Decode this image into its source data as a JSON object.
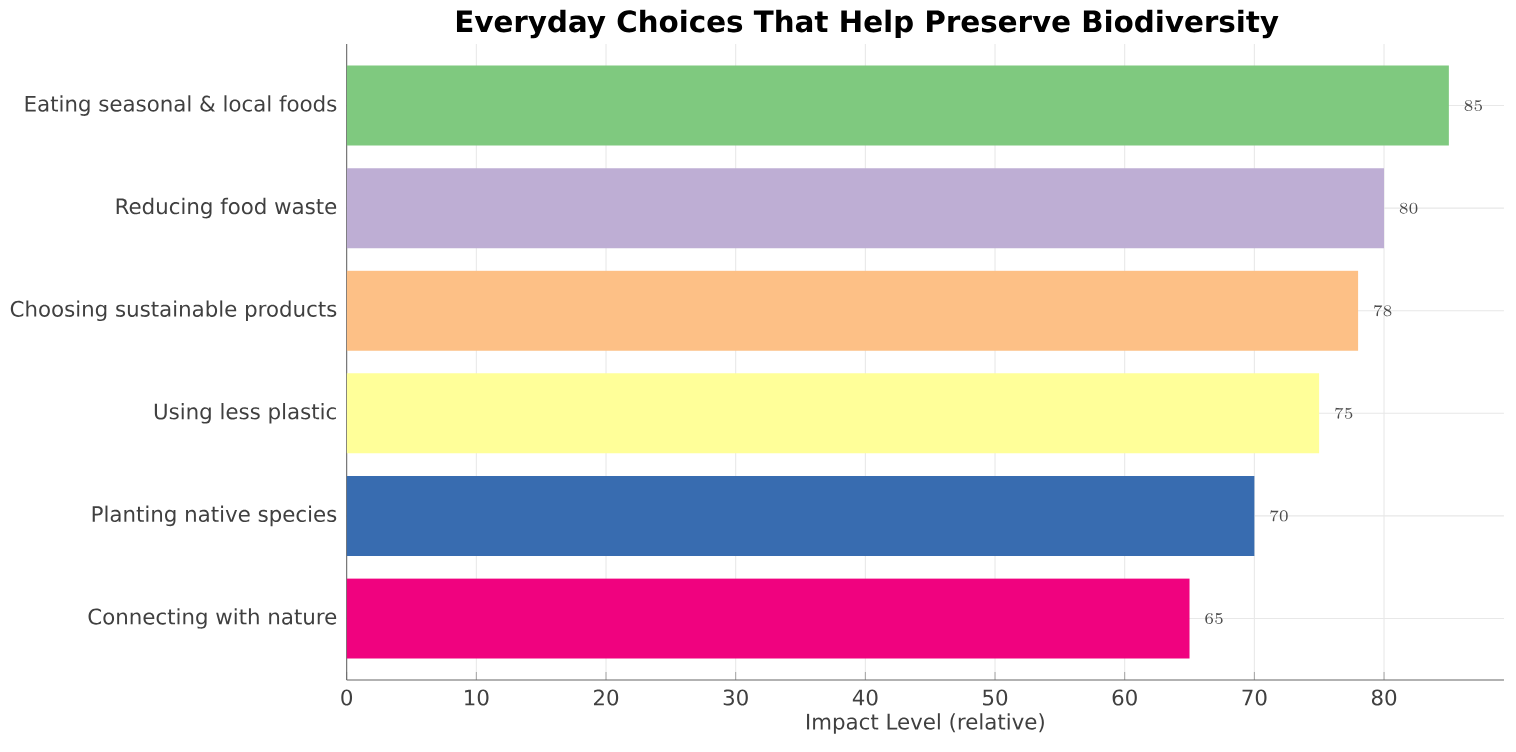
{
  "chart_data": {
    "type": "bar",
    "orientation": "horizontal",
    "title": "Everyday Choices That Help Preserve Biodiversity",
    "xlabel": "Impact Level (relative)",
    "categories": [
      "Eating seasonal & local foods",
      "Reducing food waste",
      "Choosing sustainable products",
      "Using less plastic",
      "Planting native species",
      "Connecting with nature"
    ],
    "values": [
      85,
      80,
      78,
      75,
      70,
      65
    ],
    "colors": [
      "#7fc97f",
      "#beaed4",
      "#fdc086",
      "#ffff99",
      "#386cb0",
      "#f0027f"
    ],
    "xlim": [
      0,
      89.25
    ],
    "xticks": [
      0,
      10,
      20,
      30,
      40,
      50,
      60,
      70,
      80
    ],
    "grid": true,
    "data_labels": true
  }
}
